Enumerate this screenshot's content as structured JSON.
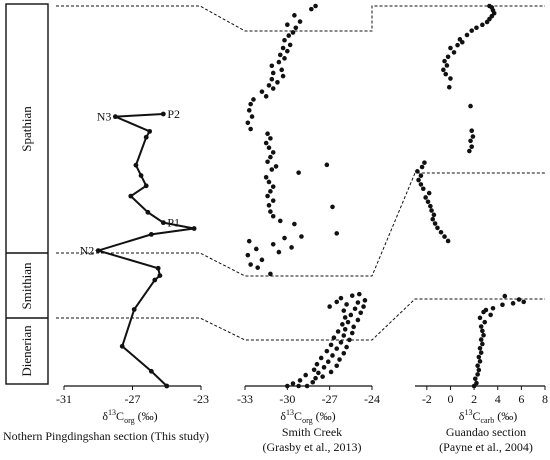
{
  "figure": {
    "stages": [
      {
        "name": "Spathian"
      },
      {
        "name": "Smithian"
      },
      {
        "name": "Dienerian"
      }
    ],
    "captions": {
      "pingdingshan": "Nothern Pingdingshan section (This study)",
      "smith_line1": "Smith Creek",
      "smith_line2": "(Grasby et al., 2013)",
      "guandao_line1": "Guandao section",
      "guandao_line2": "(Payne et al., 2004)"
    },
    "axis_titles": {
      "pingdingshan": {
        "prefix": "δ",
        "sup": "13",
        "main": "C",
        "sub": "org",
        "suffix": " (‰)"
      },
      "smith": {
        "prefix": "δ",
        "sup": "13",
        "main": "C",
        "sub": "org",
        "suffix": " (‰)"
      },
      "guandao": {
        "prefix": "δ",
        "sup": "13",
        "main": "C",
        "sub": "carb",
        "suffix": " (‰)"
      }
    }
  },
  "chart_data": [
    {
      "type": "line",
      "panel": "pingdingshan",
      "xlabel": "δ13Corg (‰)",
      "xlim": [
        -31,
        -23
      ],
      "xticks": [
        "-31",
        "-27",
        "-23"
      ],
      "tick_values": [
        -31,
        -27,
        -23
      ],
      "points": [
        {
          "x": -25.0,
          "y": 0.0
        },
        {
          "x": -25.9,
          "y": 0.05
        },
        {
          "x": -27.6,
          "y": 0.135
        },
        {
          "x": -26.9,
          "y": 0.26
        },
        {
          "x": -25.7,
          "y": 0.36
        },
        {
          "x": -25.4,
          "y": 0.375
        },
        {
          "x": -25.5,
          "y": 0.4
        },
        {
          "x": -29.0,
          "y": 0.46
        },
        {
          "x": -25.9,
          "y": 0.515
        },
        {
          "x": -23.4,
          "y": 0.535
        },
        {
          "x": -25.2,
          "y": 0.555
        },
        {
          "x": -26.1,
          "y": 0.59
        },
        {
          "x": -27.1,
          "y": 0.645
        },
        {
          "x": -26.2,
          "y": 0.68
        },
        {
          "x": -26.5,
          "y": 0.715
        },
        {
          "x": -26.8,
          "y": 0.75
        },
        {
          "x": -26.2,
          "y": 0.845
        },
        {
          "x": -26.0,
          "y": 0.865
        },
        {
          "x": -28.0,
          "y": 0.915
        },
        {
          "x": -25.2,
          "y": 0.924
        }
      ],
      "labels": [
        {
          "text": "P2",
          "index": 19
        },
        {
          "text": "N3",
          "index": 18
        },
        {
          "text": "P1",
          "index": 10
        },
        {
          "text": "N2",
          "index": 7
        }
      ]
    },
    {
      "type": "scatter",
      "panel": "smith_creek",
      "xlabel": "δ13Corg (‰)",
      "xlim": [
        -33,
        -24
      ],
      "xticks": [
        "-33",
        "-30",
        "-27",
        "-24"
      ],
      "tick_values": [
        -33,
        -30,
        -27,
        -24
      ],
      "series": [
        {
          "x": -30.0,
          "y": 0.0
        },
        {
          "x": -29.2,
          "y": 0.0
        },
        {
          "x": -28.6,
          "y": 0.0
        },
        {
          "x": -29.6,
          "y": 0.008
        },
        {
          "x": -28.2,
          "y": 0.012
        },
        {
          "x": -29.1,
          "y": 0.018
        },
        {
          "x": -28.0,
          "y": 0.025
        },
        {
          "x": -27.5,
          "y": 0.03
        },
        {
          "x": -28.7,
          "y": 0.035
        },
        {
          "x": -27.8,
          "y": 0.042
        },
        {
          "x": -26.9,
          "y": 0.045
        },
        {
          "x": -28.1,
          "y": 0.052
        },
        {
          "x": -27.4,
          "y": 0.06
        },
        {
          "x": -26.5,
          "y": 0.065
        },
        {
          "x": -27.9,
          "y": 0.07
        },
        {
          "x": -27.1,
          "y": 0.078
        },
        {
          "x": -26.3,
          "y": 0.085
        },
        {
          "x": -27.6,
          "y": 0.09
        },
        {
          "x": -26.8,
          "y": 0.098
        },
        {
          "x": -26.0,
          "y": 0.105
        },
        {
          "x": -27.2,
          "y": 0.112
        },
        {
          "x": -26.5,
          "y": 0.12
        },
        {
          "x": -25.8,
          "y": 0.125
        },
        {
          "x": -26.9,
          "y": 0.132
        },
        {
          "x": -26.2,
          "y": 0.14
        },
        {
          "x": -25.6,
          "y": 0.148
        },
        {
          "x": -26.7,
          "y": 0.155
        },
        {
          "x": -26.0,
          "y": 0.162
        },
        {
          "x": -25.4,
          "y": 0.17
        },
        {
          "x": -26.4,
          "y": 0.175
        },
        {
          "x": -25.9,
          "y": 0.182
        },
        {
          "x": -25.3,
          "y": 0.19
        },
        {
          "x": -26.1,
          "y": 0.198
        },
        {
          "x": -25.7,
          "y": 0.205
        },
        {
          "x": -25.0,
          "y": 0.212
        },
        {
          "x": -25.9,
          "y": 0.22
        },
        {
          "x": -25.5,
          "y": 0.228
        },
        {
          "x": -24.8,
          "y": 0.235
        },
        {
          "x": -26.0,
          "y": 0.242
        },
        {
          "x": -25.2,
          "y": 0.248
        },
        {
          "x": -24.6,
          "y": 0.255
        },
        {
          "x": -25.8,
          "y": 0.262
        },
        {
          "x": -25.0,
          "y": 0.268
        },
        {
          "x": -24.5,
          "y": 0.275
        },
        {
          "x": -26.2,
          "y": 0.282
        },
        {
          "x": -25.4,
          "y": 0.29
        },
        {
          "x": -24.9,
          "y": 0.295
        },
        {
          "x": -27.0,
          "y": 0.255
        },
        {
          "x": -26.5,
          "y": 0.27
        },
        {
          "x": -31.2,
          "y": 0.36
        },
        {
          "x": -32.1,
          "y": 0.38
        },
        {
          "x": -32.6,
          "y": 0.39
        },
        {
          "x": -31.8,
          "y": 0.405
        },
        {
          "x": -32.8,
          "y": 0.42
        },
        {
          "x": -30.6,
          "y": 0.43
        },
        {
          "x": -32.2,
          "y": 0.44
        },
        {
          "x": -29.7,
          "y": 0.445
        },
        {
          "x": -31.0,
          "y": 0.455
        },
        {
          "x": -32.7,
          "y": 0.465
        },
        {
          "x": -30.2,
          "y": 0.475
        },
        {
          "x": -29.0,
          "y": 0.48
        },
        {
          "x": -26.5,
          "y": 0.49
        },
        {
          "x": -29.5,
          "y": 0.52
        },
        {
          "x": -30.5,
          "y": 0.53
        },
        {
          "x": -31.0,
          "y": 0.545
        },
        {
          "x": -31.2,
          "y": 0.56
        },
        {
          "x": -26.8,
          "y": 0.575
        },
        {
          "x": -31.3,
          "y": 0.58
        },
        {
          "x": -31.0,
          "y": 0.595
        },
        {
          "x": -31.4,
          "y": 0.61
        },
        {
          "x": -31.2,
          "y": 0.625
        },
        {
          "x": -31.0,
          "y": 0.64
        },
        {
          "x": -31.3,
          "y": 0.655
        },
        {
          "x": -31.5,
          "y": 0.67
        },
        {
          "x": -29.2,
          "y": 0.685
        },
        {
          "x": -31.1,
          "y": 0.695
        },
        {
          "x": -30.8,
          "y": 0.705
        },
        {
          "x": -27.2,
          "y": 0.71
        },
        {
          "x": -31.4,
          "y": 0.72
        },
        {
          "x": -31.2,
          "y": 0.735
        },
        {
          "x": -31.0,
          "y": 0.75
        },
        {
          "x": -31.3,
          "y": 0.765
        },
        {
          "x": -31.5,
          "y": 0.78
        },
        {
          "x": -31.2,
          "y": 0.795
        },
        {
          "x": -31.4,
          "y": 0.81
        },
        {
          "x": -32.6,
          "y": 0.825
        },
        {
          "x": -32.8,
          "y": 0.845
        },
        {
          "x": -32.5,
          "y": 0.865
        },
        {
          "x": -32.7,
          "y": 0.885
        },
        {
          "x": -32.6,
          "y": 0.905
        },
        {
          "x": -32.4,
          "y": 0.92
        },
        {
          "x": -31.5,
          "y": 0.93
        },
        {
          "x": -31.8,
          "y": 0.945
        },
        {
          "x": -31.0,
          "y": 0.955
        },
        {
          "x": -31.3,
          "y": 0.965
        },
        {
          "x": -30.7,
          "y": 0.975
        },
        {
          "x": -31.1,
          "y": 0.985
        },
        {
          "x": -30.3,
          "y": 0.995
        },
        {
          "x": -31.0,
          "y": 1.005
        },
        {
          "x": -30.4,
          "y": 1.015
        },
        {
          "x": -31.1,
          "y": 1.028
        },
        {
          "x": -30.6,
          "y": 1.04
        },
        {
          "x": -30.2,
          "y": 1.052
        },
        {
          "x": -30.5,
          "y": 1.063
        },
        {
          "x": -30.0,
          "y": 1.075
        },
        {
          "x": -30.3,
          "y": 1.085
        },
        {
          "x": -29.8,
          "y": 1.095
        },
        {
          "x": -30.2,
          "y": 1.11
        },
        {
          "x": -29.9,
          "y": 1.125
        },
        {
          "x": -29.6,
          "y": 1.135
        },
        {
          "x": -29.4,
          "y": 1.15
        },
        {
          "x": -30.0,
          "y": 1.16
        },
        {
          "x": -29.1,
          "y": 1.17
        },
        {
          "x": -29.5,
          "y": 1.19
        },
        {
          "x": -28.3,
          "y": 1.21
        },
        {
          "x": -28.0,
          "y": 1.22
        }
      ]
    },
    {
      "type": "scatter",
      "panel": "guandao",
      "xlabel": "δ13Ccarb (‰)",
      "xlim": [
        -3,
        8
      ],
      "xticks": [
        "-2",
        "0",
        "2",
        "4",
        "6",
        "8"
      ],
      "tick_values": [
        -2,
        0,
        2,
        4,
        6,
        8
      ],
      "series": [
        {
          "x": 2.0,
          "y": 0.0
        },
        {
          "x": 2.2,
          "y": 0.01
        },
        {
          "x": 2.1,
          "y": 0.025
        },
        {
          "x": 2.3,
          "y": 0.04
        },
        {
          "x": 2.4,
          "y": 0.055
        },
        {
          "x": 2.3,
          "y": 0.07
        },
        {
          "x": 2.5,
          "y": 0.085
        },
        {
          "x": 2.4,
          "y": 0.1
        },
        {
          "x": 2.6,
          "y": 0.115
        },
        {
          "x": 2.5,
          "y": 0.13
        },
        {
          "x": 2.7,
          "y": 0.145
        },
        {
          "x": 2.6,
          "y": 0.16
        },
        {
          "x": 2.8,
          "y": 0.175
        },
        {
          "x": 2.7,
          "y": 0.19
        },
        {
          "x": 2.6,
          "y": 0.205
        },
        {
          "x": 2.9,
          "y": 0.22
        },
        {
          "x": 2.5,
          "y": 0.235
        },
        {
          "x": 3.4,
          "y": 0.245
        },
        {
          "x": 2.8,
          "y": 0.255
        },
        {
          "x": 3.0,
          "y": 0.262
        },
        {
          "x": 3.6,
          "y": 0.268
        },
        {
          "x": 4.4,
          "y": 0.28
        },
        {
          "x": 5.3,
          "y": 0.285
        },
        {
          "x": 6.2,
          "y": 0.29
        },
        {
          "x": 5.8,
          "y": 0.298
        },
        {
          "x": 4.6,
          "y": 0.31
        },
        {
          "x": -0.2,
          "y": 0.5
        },
        {
          "x": -0.5,
          "y": 0.515
        },
        {
          "x": -0.8,
          "y": 0.53
        },
        {
          "x": -1.1,
          "y": 0.545
        },
        {
          "x": -1.3,
          "y": 0.56
        },
        {
          "x": -1.5,
          "y": 0.575
        },
        {
          "x": -1.4,
          "y": 0.59
        },
        {
          "x": -1.6,
          "y": 0.605
        },
        {
          "x": -1.7,
          "y": 0.62
        },
        {
          "x": -1.9,
          "y": 0.635
        },
        {
          "x": -2.1,
          "y": 0.65
        },
        {
          "x": -1.8,
          "y": 0.665
        },
        {
          "x": -2.3,
          "y": 0.68
        },
        {
          "x": -2.5,
          "y": 0.695
        },
        {
          "x": -2.7,
          "y": 0.71
        },
        {
          "x": -2.5,
          "y": 0.725
        },
        {
          "x": -2.8,
          "y": 0.74
        },
        {
          "x": -2.4,
          "y": 0.755
        },
        {
          "x": -2.2,
          "y": 0.77
        },
        {
          "x": 1.6,
          "y": 0.81
        },
        {
          "x": 1.8,
          "y": 0.825
        },
        {
          "x": 1.7,
          "y": 0.845
        },
        {
          "x": 1.9,
          "y": 0.86
        },
        {
          "x": 1.8,
          "y": 0.88
        },
        {
          "x": 1.7,
          "y": 0.965
        },
        {
          "x": -0.1,
          "y": 1.03
        },
        {
          "x": 0.0,
          "y": 1.06
        },
        {
          "x": -0.4,
          "y": 1.075
        },
        {
          "x": -0.6,
          "y": 1.09
        },
        {
          "x": -0.3,
          "y": 1.105
        },
        {
          "x": -0.5,
          "y": 1.12
        },
        {
          "x": -0.2,
          "y": 1.135
        },
        {
          "x": 0.3,
          "y": 1.15
        },
        {
          "x": 0.0,
          "y": 1.165
        },
        {
          "x": 0.6,
          "y": 1.175
        },
        {
          "x": 1.0,
          "y": 1.185
        },
        {
          "x": 0.8,
          "y": 1.195
        },
        {
          "x": 1.4,
          "y": 1.21
        },
        {
          "x": 1.8,
          "y": 1.225
        },
        {
          "x": 2.2,
          "y": 1.235
        },
        {
          "x": 2.7,
          "y": 1.245
        },
        {
          "x": 3.1,
          "y": 1.255
        },
        {
          "x": 3.3,
          "y": 1.265
        },
        {
          "x": 3.5,
          "y": 1.275
        },
        {
          "x": 3.7,
          "y": 1.285
        },
        {
          "x": 3.6,
          "y": 1.295
        },
        {
          "x": 3.5,
          "y": 1.305
        },
        {
          "x": 3.3,
          "y": 1.31
        }
      ]
    }
  ]
}
